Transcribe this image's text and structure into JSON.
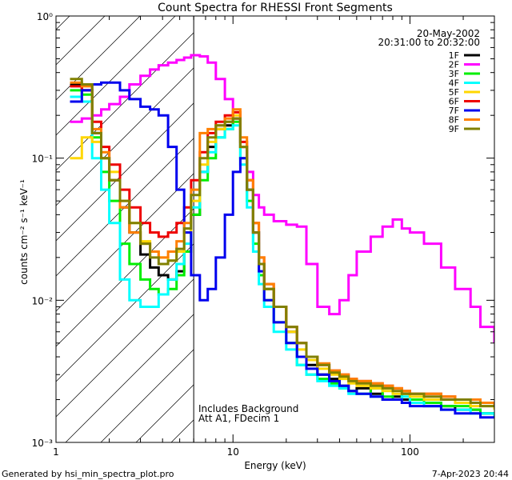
{
  "chart_data": {
    "type": "line",
    "title": "Count Spectra for RHESSI Front Segments",
    "xlabel": "Energy (keV)",
    "ylabel": "counts cm⁻² s⁻¹ keV⁻¹",
    "xscale": "log",
    "yscale": "log",
    "xlim": [
      1,
      300
    ],
    "ylim": [
      0.001,
      1
    ],
    "x_tick_labels": [
      "1",
      "10",
      "100"
    ],
    "y_tick_labels": [
      "10⁰",
      "10⁻¹",
      "10⁻²",
      "10⁻³"
    ],
    "date": "20-May-2002",
    "time_range": "20:31:00 to 20:32:00",
    "annotations": [
      "Includes Background",
      "Att A1, FDecim 1"
    ],
    "footer_left": "Generated by hsi_min_spectra_plot.pro",
    "footer_right": "7-Apr-2023 20:44",
    "hatched_region_max_energy": 6,
    "series": [
      {
        "name": "1F",
        "color": "#000000",
        "x": [
          1.2,
          1.4,
          1.6,
          1.8,
          2.0,
          2.3,
          2.6,
          3.0,
          3.4,
          3.8,
          4.3,
          4.8,
          5.3,
          5.8,
          6.5,
          7.2,
          8.0,
          9.0,
          10,
          11,
          12,
          13,
          14,
          15,
          17,
          20,
          23,
          26,
          30,
          35,
          40,
          45,
          50,
          60,
          70,
          80,
          90,
          100,
          120,
          150,
          180,
          220,
          250,
          300
        ],
        "values": [
          0.33,
          0.3,
          0.15,
          0.1,
          0.07,
          0.045,
          0.03,
          0.021,
          0.017,
          0.015,
          0.014,
          0.016,
          0.022,
          0.04,
          0.08,
          0.12,
          0.16,
          0.17,
          0.19,
          0.12,
          0.06,
          0.03,
          0.018,
          0.012,
          0.009,
          0.006,
          0.004,
          0.0035,
          0.003,
          0.0028,
          0.0025,
          0.0023,
          0.0024,
          0.0022,
          0.002,
          0.0021,
          0.002,
          0.0019,
          0.0018,
          0.0018,
          0.0017,
          0.0017,
          0.0016,
          0.0016
        ]
      },
      {
        "name": "2F",
        "color": "#ff00ff",
        "x": [
          1.2,
          1.4,
          1.6,
          1.8,
          2.0,
          2.3,
          2.6,
          3.0,
          3.4,
          3.8,
          4.3,
          4.8,
          5.3,
          5.8,
          6.5,
          7.2,
          8.0,
          9.0,
          10,
          11,
          12,
          13,
          14,
          15,
          17,
          20,
          23,
          26,
          30,
          35,
          40,
          45,
          50,
          60,
          70,
          80,
          90,
          100,
          120,
          150,
          180,
          220,
          250,
          300
        ],
        "values": [
          0.18,
          0.19,
          0.2,
          0.22,
          0.24,
          0.27,
          0.33,
          0.38,
          0.42,
          0.45,
          0.47,
          0.49,
          0.51,
          0.53,
          0.52,
          0.47,
          0.36,
          0.26,
          0.19,
          0.12,
          0.08,
          0.055,
          0.045,
          0.04,
          0.036,
          0.034,
          0.033,
          0.018,
          0.009,
          0.008,
          0.01,
          0.015,
          0.022,
          0.028,
          0.033,
          0.037,
          0.032,
          0.03,
          0.025,
          0.017,
          0.012,
          0.009,
          0.0065,
          0.005
        ]
      },
      {
        "name": "3F",
        "color": "#00ee00",
        "x": [
          1.2,
          1.4,
          1.6,
          1.8,
          2.0,
          2.3,
          2.6,
          3.0,
          3.4,
          3.8,
          4.3,
          4.8,
          5.3,
          5.8,
          6.5,
          7.2,
          8.0,
          9.0,
          10,
          11,
          12,
          13,
          14,
          15,
          17,
          20,
          23,
          26,
          30,
          35,
          40,
          45,
          50,
          60,
          70,
          80,
          90,
          100,
          120,
          150,
          180,
          220,
          250,
          300
        ],
        "values": [
          0.3,
          0.28,
          0.14,
          0.08,
          0.05,
          0.025,
          0.018,
          0.014,
          0.012,
          0.011,
          0.012,
          0.015,
          0.022,
          0.04,
          0.07,
          0.1,
          0.14,
          0.16,
          0.18,
          0.1,
          0.05,
          0.025,
          0.015,
          0.01,
          0.007,
          0.005,
          0.0035,
          0.003,
          0.0028,
          0.0026,
          0.0024,
          0.0023,
          0.0022,
          0.0024,
          0.0021,
          0.002,
          0.0022,
          0.002,
          0.0019,
          0.0018,
          0.0018,
          0.0017,
          0.0016,
          0.0016
        ]
      },
      {
        "name": "4F",
        "color": "#00ffff",
        "x": [
          1.2,
          1.4,
          1.6,
          1.8,
          2.0,
          2.3,
          2.6,
          3.0,
          3.4,
          3.8,
          4.3,
          4.8,
          5.3,
          5.8,
          6.5,
          7.2,
          8.0,
          9.0,
          10,
          11,
          12,
          13,
          14,
          15,
          17,
          20,
          23,
          26,
          30,
          35,
          40,
          45,
          50,
          60,
          70,
          80,
          90,
          100,
          120,
          150,
          180,
          220,
          250,
          300
        ],
        "values": [
          0.27,
          0.25,
          0.1,
          0.06,
          0.035,
          0.014,
          0.01,
          0.009,
          0.009,
          0.011,
          0.014,
          0.018,
          0.025,
          0.045,
          0.08,
          0.11,
          0.14,
          0.16,
          0.17,
          0.09,
          0.045,
          0.022,
          0.013,
          0.009,
          0.006,
          0.0045,
          0.0035,
          0.003,
          0.0027,
          0.0025,
          0.0024,
          0.0022,
          0.0022,
          0.0021,
          0.002,
          0.002,
          0.0021,
          0.0019,
          0.0018,
          0.0017,
          0.0017,
          0.0016,
          0.0016,
          0.0015
        ]
      },
      {
        "name": "5F",
        "color": "#ffd700",
        "x": [
          1.2,
          1.4,
          1.6,
          1.8,
          2.0,
          2.3,
          2.6,
          3.0,
          3.4,
          3.8,
          4.3,
          4.8,
          5.3,
          5.8,
          6.5,
          7.2,
          8.0,
          9.0,
          10,
          11,
          12,
          13,
          14,
          15,
          17,
          20,
          23,
          26,
          30,
          35,
          40,
          45,
          50,
          60,
          70,
          80,
          90,
          100,
          120,
          150,
          180,
          220,
          250,
          300
        ],
        "values": [
          0.1,
          0.14,
          0.13,
          0.1,
          0.08,
          0.05,
          0.035,
          0.026,
          0.022,
          0.02,
          0.019,
          0.022,
          0.03,
          0.05,
          0.09,
          0.13,
          0.16,
          0.18,
          0.2,
          0.12,
          0.06,
          0.03,
          0.018,
          0.012,
          0.009,
          0.006,
          0.0045,
          0.0038,
          0.0033,
          0.003,
          0.0028,
          0.0026,
          0.0025,
          0.0024,
          0.0023,
          0.0022,
          0.0022,
          0.0021,
          0.002,
          0.002,
          0.0019,
          0.0018,
          0.0018,
          0.0017
        ]
      },
      {
        "name": "6F",
        "color": "#ee0000",
        "x": [
          1.2,
          1.4,
          1.6,
          1.8,
          2.0,
          2.3,
          2.6,
          3.0,
          3.4,
          3.8,
          4.3,
          4.8,
          5.3,
          5.8,
          6.5,
          7.2,
          8.0,
          9.0,
          10,
          11,
          12,
          13,
          14,
          15,
          17,
          20,
          23,
          26,
          30,
          35,
          40,
          45,
          50,
          60,
          70,
          80,
          90,
          100,
          120,
          150,
          180,
          220,
          250,
          300
        ],
        "values": [
          0.32,
          0.3,
          0.18,
          0.12,
          0.09,
          0.06,
          0.045,
          0.035,
          0.03,
          0.028,
          0.03,
          0.035,
          0.045,
          0.07,
          0.11,
          0.15,
          0.18,
          0.2,
          0.21,
          0.13,
          0.07,
          0.035,
          0.02,
          0.013,
          0.009,
          0.0065,
          0.005,
          0.004,
          0.0035,
          0.0032,
          0.003,
          0.0028,
          0.0027,
          0.0026,
          0.0025,
          0.0024,
          0.0023,
          0.0022,
          0.0022,
          0.0021,
          0.002,
          0.002,
          0.0019,
          0.0018
        ]
      },
      {
        "name": "7F",
        "color": "#0000ee",
        "x": [
          1.2,
          1.4,
          1.6,
          1.8,
          2.0,
          2.3,
          2.6,
          3.0,
          3.4,
          3.8,
          4.3,
          4.8,
          5.3,
          5.8,
          6.5,
          7.2,
          8.0,
          9.0,
          10,
          11,
          12,
          13,
          14,
          15,
          17,
          20,
          23,
          26,
          30,
          35,
          40,
          45,
          50,
          60,
          70,
          80,
          90,
          100,
          120,
          150,
          180,
          220,
          250,
          300
        ],
        "values": [
          0.25,
          0.3,
          0.33,
          0.34,
          0.34,
          0.3,
          0.26,
          0.23,
          0.22,
          0.2,
          0.12,
          0.06,
          0.03,
          0.015,
          0.01,
          0.012,
          0.02,
          0.04,
          0.08,
          0.1,
          0.06,
          0.03,
          0.016,
          0.01,
          0.007,
          0.005,
          0.004,
          0.0033,
          0.003,
          0.0027,
          0.0025,
          0.0023,
          0.0022,
          0.0021,
          0.002,
          0.002,
          0.0019,
          0.0018,
          0.0018,
          0.0017,
          0.0016,
          0.0016,
          0.0015,
          0.0015
        ]
      },
      {
        "name": "8F",
        "color": "#ff8000",
        "x": [
          1.2,
          1.4,
          1.6,
          1.8,
          2.0,
          2.3,
          2.6,
          3.0,
          3.4,
          3.8,
          4.3,
          4.8,
          5.3,
          5.8,
          6.5,
          7.2,
          8.0,
          9.0,
          10,
          11,
          12,
          13,
          14,
          15,
          17,
          20,
          23,
          26,
          30,
          35,
          40,
          45,
          50,
          60,
          70,
          80,
          90,
          100,
          120,
          150,
          180,
          220,
          250,
          300
        ],
        "values": [
          0.34,
          0.32,
          0.16,
          0.11,
          0.07,
          0.045,
          0.03,
          0.025,
          0.022,
          0.02,
          0.022,
          0.026,
          0.035,
          0.06,
          0.15,
          0.16,
          0.17,
          0.19,
          0.22,
          0.14,
          0.07,
          0.035,
          0.02,
          0.013,
          0.009,
          0.0065,
          0.005,
          0.004,
          0.0036,
          0.0032,
          0.003,
          0.0028,
          0.0027,
          0.0026,
          0.0025,
          0.0024,
          0.0023,
          0.0022,
          0.0022,
          0.0021,
          0.002,
          0.002,
          0.0019,
          0.0018
        ]
      },
      {
        "name": "9F",
        "color": "#808000",
        "x": [
          1.2,
          1.4,
          1.6,
          1.8,
          2.0,
          2.3,
          2.6,
          3.0,
          3.4,
          3.8,
          4.3,
          4.8,
          5.3,
          5.8,
          6.5,
          7.2,
          8.0,
          9.0,
          10,
          11,
          12,
          13,
          14,
          15,
          17,
          20,
          23,
          26,
          30,
          35,
          40,
          45,
          50,
          60,
          70,
          80,
          90,
          100,
          120,
          150,
          180,
          220,
          250,
          300
        ],
        "values": [
          0.36,
          0.33,
          0.15,
          0.1,
          0.07,
          0.05,
          0.035,
          0.025,
          0.02,
          0.018,
          0.019,
          0.023,
          0.032,
          0.055,
          0.1,
          0.14,
          0.17,
          0.18,
          0.19,
          0.12,
          0.06,
          0.03,
          0.018,
          0.012,
          0.009,
          0.0065,
          0.005,
          0.004,
          0.0035,
          0.0031,
          0.0029,
          0.0027,
          0.0026,
          0.0025,
          0.0024,
          0.0023,
          0.0022,
          0.0022,
          0.0021,
          0.002,
          0.002,
          0.0019,
          0.0018,
          0.0018
        ]
      }
    ]
  }
}
